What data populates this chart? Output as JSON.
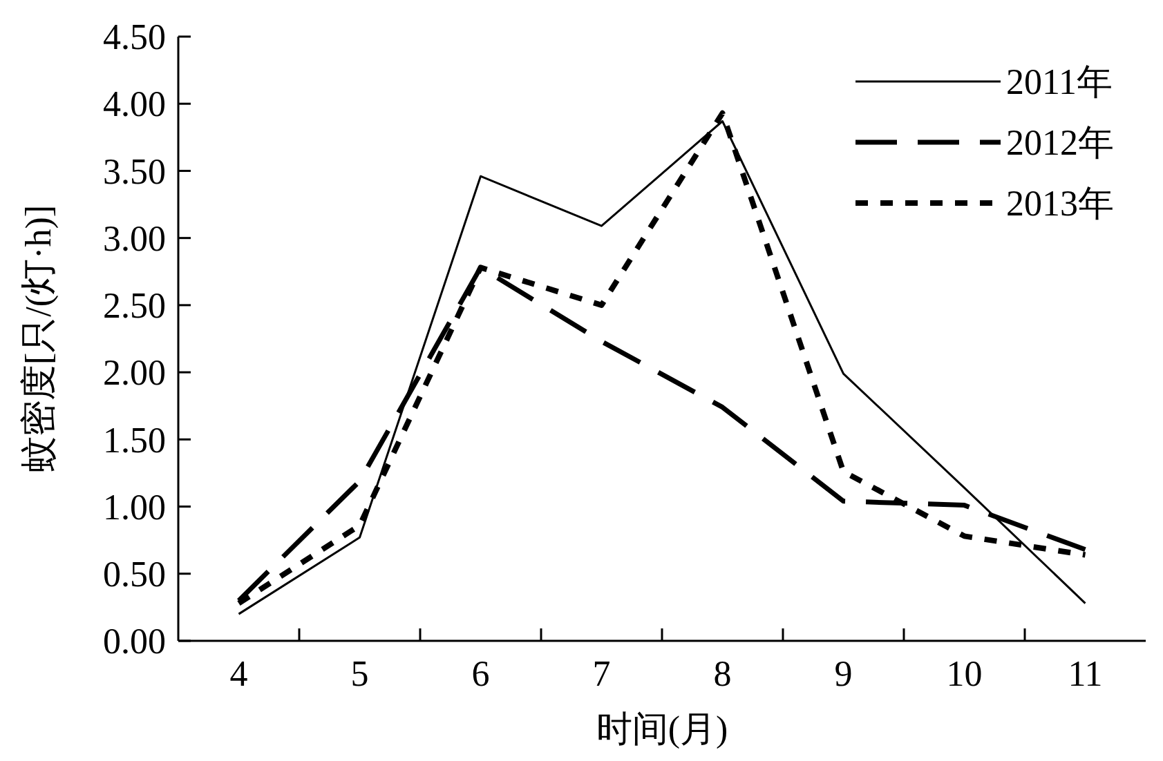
{
  "chart_data": {
    "type": "line",
    "xlabel": "时间(月)",
    "ylabel": "蚊密度[只/(灯·h)]",
    "categories": [
      "4",
      "5",
      "6",
      "7",
      "8",
      "9",
      "10",
      "11"
    ],
    "series": [
      {
        "name": "2011年",
        "color": "#000000",
        "line_style": "solid",
        "values": [
          0.2,
          0.77,
          3.46,
          3.09,
          3.87,
          1.99,
          1.14,
          0.28
        ]
      },
      {
        "name": "2012年",
        "color": "#000000",
        "line_style": "dashed",
        "values": [
          0.3,
          1.19,
          2.78,
          2.23,
          1.74,
          1.04,
          1.01,
          0.68
        ]
      },
      {
        "name": "2013年",
        "color": "#000000",
        "line_style": "dotted",
        "values": [
          0.28,
          0.86,
          2.78,
          2.5,
          3.93,
          1.26,
          0.78,
          0.64
        ]
      }
    ],
    "ylim": [
      0,
      4.5
    ],
    "yticks": [
      {
        "value": 0,
        "label": "0.00"
      },
      {
        "value": 0.5,
        "label": "0.50"
      },
      {
        "value": 1,
        "label": "1.00"
      },
      {
        "value": 1.5,
        "label": "1.50"
      },
      {
        "value": 2,
        "label": "2.00"
      },
      {
        "value": 2.5,
        "label": "2.50"
      },
      {
        "value": 3,
        "label": "3.00"
      },
      {
        "value": 3.5,
        "label": "3.50"
      },
      {
        "value": 4,
        "label": "4.00"
      },
      {
        "value": 4.5,
        "label": "4.50"
      }
    ],
    "grid": false,
    "legend": "top right",
    "marker": "none"
  }
}
